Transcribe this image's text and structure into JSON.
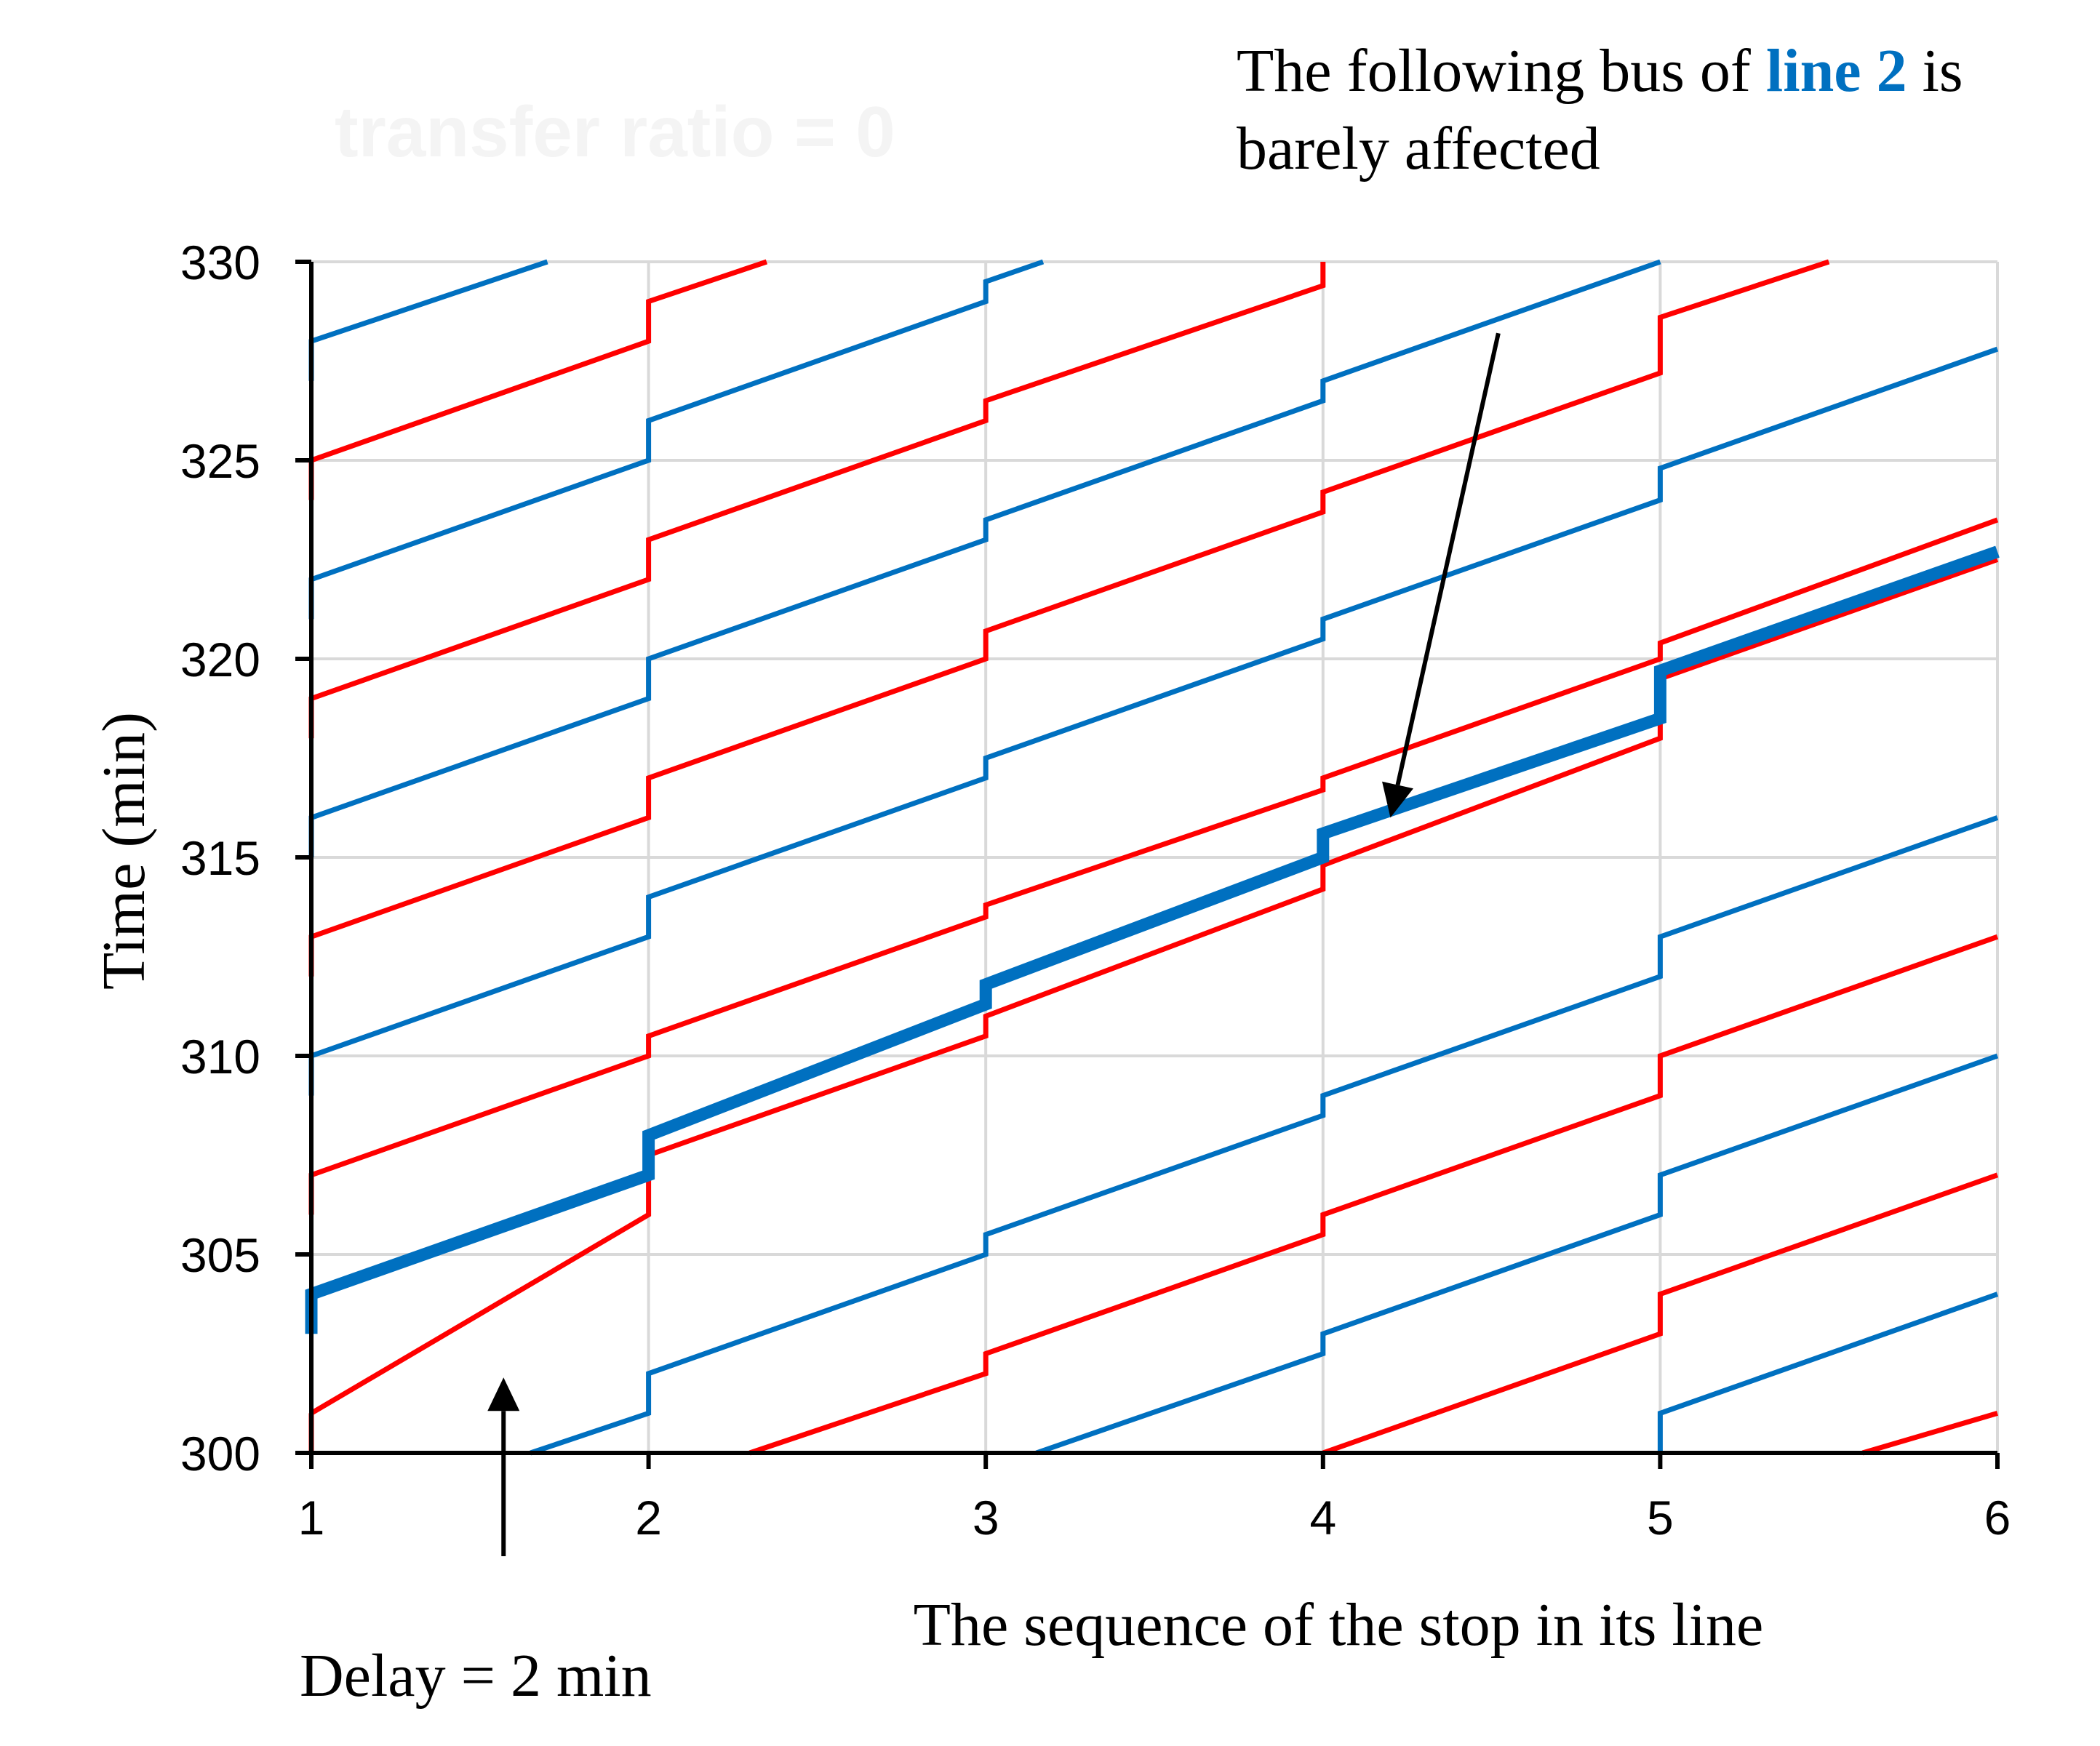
{
  "chart_data": {
    "type": "line",
    "title": "transfer ratio = 0",
    "xlabel": "The sequence of the stop in its line",
    "ylabel": "Time (min)",
    "xlim": [
      1,
      6
    ],
    "ylim": [
      300,
      330
    ],
    "x_ticks": [
      "1",
      "2",
      "3",
      "4",
      "5",
      "6"
    ],
    "y_ticks": [
      "300",
      "305",
      "310",
      "315",
      "320",
      "325",
      "330"
    ],
    "grid": true,
    "legend": "none",
    "colors": {
      "red_line": "#ff0000",
      "blue_line": "#0070c0",
      "annotation_highlight": "#0070c0"
    },
    "annotations": {
      "top_prefix": "The following bus of ",
      "top_highlight": "line 2",
      "top_suffix": " is",
      "top_line2": "barely affected",
      "top_arrow_from": [
        4.52,
        328.2
      ],
      "top_arrow_to": [
        4.2,
        316.0
      ],
      "bottom_text": "Delay = 2 min",
      "bottom_arrow_from": [
        1.57,
        297.4
      ],
      "bottom_arrow_to": [
        1.57,
        301.9
      ]
    },
    "series": [
      {
        "color": "red",
        "points": [
          [
            1,
            301
          ],
          [
            2,
            306
          ],
          [
            2,
            307.5
          ],
          [
            3,
            310.5
          ],
          [
            3,
            311
          ],
          [
            4,
            314.2
          ],
          [
            4,
            314.8
          ],
          [
            5,
            318
          ],
          [
            5,
            319.5
          ],
          [
            6,
            322.5
          ]
        ]
      },
      {
        "color": "blue",
        "highlight": true,
        "points": [
          [
            1,
            303
          ],
          [
            1,
            304
          ],
          [
            2,
            307
          ],
          [
            2,
            308
          ],
          [
            3,
            311.3
          ],
          [
            3,
            311.8
          ],
          [
            4,
            315
          ],
          [
            4,
            315.6
          ],
          [
            5,
            318.5
          ],
          [
            5,
            319.7
          ],
          [
            6,
            322.7
          ]
        ]
      },
      {
        "color": "red",
        "points": [
          [
            1,
            300
          ],
          [
            1,
            301
          ]
        ]
      },
      {
        "color": "red",
        "points": [
          [
            1,
            306
          ],
          [
            1,
            307
          ],
          [
            2,
            310
          ],
          [
            2,
            310.5
          ],
          [
            3,
            313.5
          ],
          [
            3,
            313.8
          ],
          [
            4,
            316.7
          ],
          [
            4,
            317
          ],
          [
            5,
            320
          ],
          [
            5,
            320.4
          ],
          [
            6,
            323.5
          ]
        ]
      },
      {
        "color": "red",
        "points": [
          [
            1,
            312
          ],
          [
            1,
            313
          ],
          [
            2,
            316
          ],
          [
            2,
            317
          ],
          [
            3,
            320
          ],
          [
            3,
            320.7
          ],
          [
            4,
            323.7
          ],
          [
            4,
            324.2
          ],
          [
            5,
            327.2
          ],
          [
            5,
            328.6
          ],
          [
            5.5,
            330
          ]
        ]
      },
      {
        "color": "red",
        "points": [
          [
            1,
            318
          ],
          [
            1,
            319
          ],
          [
            2,
            322
          ],
          [
            2,
            323
          ],
          [
            3,
            326
          ],
          [
            3,
            326.5
          ],
          [
            4,
            329.4
          ],
          [
            4,
            330
          ]
        ]
      },
      {
        "color": "red",
        "points": [
          [
            1,
            324
          ],
          [
            1,
            325
          ],
          [
            2,
            328
          ],
          [
            2,
            329
          ],
          [
            2.35,
            330
          ]
        ]
      },
      {
        "color": "red",
        "points": [
          [
            2.3,
            300
          ],
          [
            3,
            302
          ],
          [
            3,
            302.5
          ],
          [
            4,
            305.5
          ],
          [
            4,
            306
          ],
          [
            5,
            309
          ],
          [
            5,
            310
          ],
          [
            6,
            313
          ]
        ]
      },
      {
        "color": "red",
        "points": [
          [
            4,
            300
          ],
          [
            5,
            303
          ],
          [
            5,
            304
          ],
          [
            6,
            307
          ]
        ]
      },
      {
        "color": "red",
        "points": [
          [
            5.6,
            300
          ],
          [
            6,
            301
          ]
        ]
      },
      {
        "color": "blue",
        "points": [
          [
            1,
            309
          ],
          [
            1,
            310
          ],
          [
            2,
            313
          ],
          [
            2,
            314
          ],
          [
            3,
            317
          ],
          [
            3,
            317.5
          ],
          [
            4,
            320.5
          ],
          [
            4,
            321
          ],
          [
            5,
            324
          ],
          [
            5,
            324.8
          ],
          [
            6,
            327.8
          ]
        ]
      },
      {
        "color": "blue",
        "points": [
          [
            1,
            315
          ],
          [
            1,
            316
          ],
          [
            2,
            319
          ],
          [
            2,
            320
          ],
          [
            3,
            323
          ],
          [
            3,
            323.5
          ],
          [
            4,
            326.5
          ],
          [
            4,
            327
          ],
          [
            5,
            330
          ]
        ]
      },
      {
        "color": "blue",
        "points": [
          [
            1,
            321
          ],
          [
            1,
            322
          ],
          [
            2,
            325
          ],
          [
            2,
            326
          ],
          [
            3,
            329
          ],
          [
            3,
            329.5
          ],
          [
            3.17,
            330
          ]
        ]
      },
      {
        "color": "blue",
        "points": [
          [
            1,
            327
          ],
          [
            1,
            328
          ],
          [
            1.7,
            330
          ]
        ]
      },
      {
        "color": "blue",
        "points": [
          [
            1.65,
            300
          ],
          [
            2,
            301
          ],
          [
            2,
            302
          ],
          [
            3,
            305
          ],
          [
            3,
            305.5
          ],
          [
            4,
            308.5
          ],
          [
            4,
            309
          ],
          [
            5,
            312
          ],
          [
            5,
            313
          ],
          [
            6,
            316
          ]
        ]
      },
      {
        "color": "blue",
        "points": [
          [
            3.15,
            300
          ],
          [
            4,
            302.5
          ],
          [
            4,
            303
          ],
          [
            5,
            306
          ],
          [
            5,
            307
          ],
          [
            6,
            310
          ]
        ]
      },
      {
        "color": "blue",
        "points": [
          [
            5,
            300
          ],
          [
            5,
            301
          ],
          [
            6,
            304
          ]
        ]
      }
    ]
  }
}
